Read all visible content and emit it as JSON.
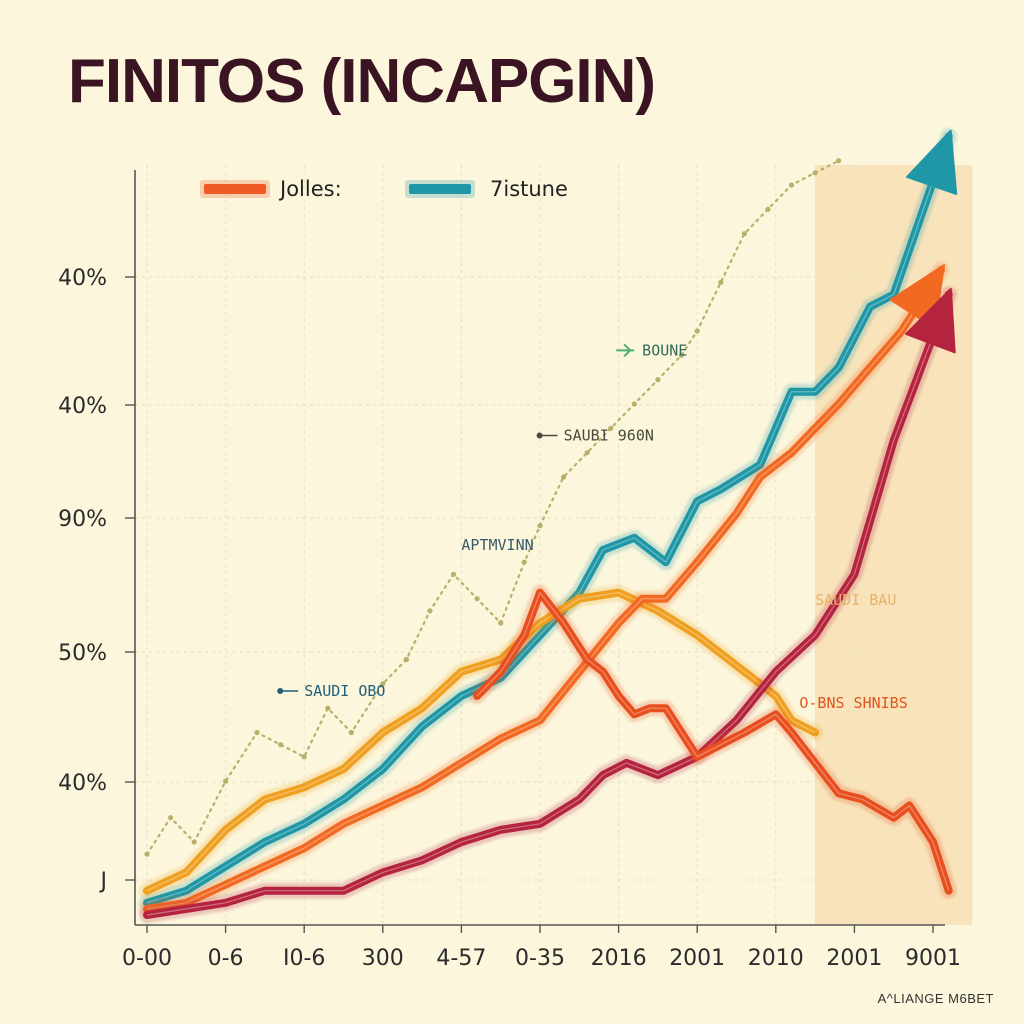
{
  "title": "FINITOS (INCAPGIN)",
  "footer": "A^LIANGE M6BET",
  "colors": {
    "background": "#fbf6dc",
    "highlight": "#f7dcb0",
    "grid": "#e8e2c8",
    "axis": "#555555"
  },
  "chart_data": {
    "type": "line",
    "title": "FINITOS (INCAPGIN)",
    "xlabel": "",
    "ylabel": "",
    "x_tick_labels": [
      "0-00",
      "0-6",
      "I0-6",
      "300",
      "4-57",
      "0-35",
      "2016",
      "2001",
      "2010",
      "2001",
      "9001"
    ],
    "y_tick_labels": [
      "J",
      "40%",
      "50%",
      "90%",
      "40%",
      "40%"
    ],
    "grid": true,
    "legend_position": "top-left",
    "legend": [
      {
        "label": "Jolles:",
        "color": "#f05a24"
      },
      {
        "label": "7istune",
        "color": "#1f97a6"
      }
    ],
    "highlight_band": {
      "from": 8.5,
      "to": 10.5
    },
    "ylim": [
      0,
      6
    ],
    "series": [
      {
        "color": "#1f97a6",
        "style": "line",
        "arrow": true,
        "x": [
          0,
          0.5,
          1,
          1.5,
          2,
          2.5,
          3,
          3.5,
          4,
          4.5,
          5,
          5.5,
          5.8,
          6.2,
          6.6,
          7,
          7.3,
          7.8,
          8.2,
          8.5,
          8.8,
          9.2,
          9.5,
          10.2
        ],
        "y": [
          0.1,
          0.2,
          0.4,
          0.6,
          0.75,
          0.95,
          1.2,
          1.55,
          1.8,
          1.95,
          2.3,
          2.65,
          3.0,
          3.1,
          2.9,
          3.4,
          3.5,
          3.7,
          4.3,
          4.3,
          4.5,
          5.0,
          5.1,
          6.4
        ]
      },
      {
        "color": "#f0a020",
        "style": "line",
        "arrow": false,
        "x": [
          0,
          0.5,
          1,
          1.5,
          2,
          2.5,
          3,
          3.5,
          4,
          4.5,
          5,
          5.5,
          6,
          6.5,
          7,
          7.5,
          8,
          8.2,
          8.5
        ],
        "y": [
          0.2,
          0.35,
          0.7,
          0.95,
          1.05,
          1.2,
          1.5,
          1.7,
          2.0,
          2.1,
          2.4,
          2.6,
          2.65,
          2.5,
          2.3,
          2.05,
          1.8,
          1.6,
          1.5
        ]
      },
      {
        "color": "#f26a22",
        "style": "line",
        "arrow": true,
        "x": [
          0,
          0.5,
          1,
          1.5,
          2,
          2.5,
          3,
          3.5,
          4,
          4.5,
          5,
          5.5,
          6,
          6.3,
          6.6,
          7,
          7.5,
          7.8,
          8.2,
          8.5,
          8.8,
          9.2,
          9.6,
          10.1
        ],
        "y": [
          0.05,
          0.1,
          0.25,
          0.4,
          0.55,
          0.75,
          0.9,
          1.05,
          1.25,
          1.45,
          1.6,
          2.0,
          2.4,
          2.6,
          2.6,
          2.9,
          3.3,
          3.6,
          3.8,
          4.0,
          4.2,
          4.5,
          4.8,
          5.3
        ]
      },
      {
        "color": "#b5243f",
        "style": "line",
        "arrow": true,
        "x": [
          0,
          0.5,
          1,
          1.5,
          2,
          2.5,
          3,
          3.5,
          4,
          4.5,
          5,
          5.5,
          5.8,
          6.1,
          6.5,
          7,
          7.5,
          8,
          8.5,
          9,
          9.5,
          10.2
        ],
        "y": [
          0.0,
          0.05,
          0.1,
          0.2,
          0.2,
          0.2,
          0.35,
          0.45,
          0.6,
          0.7,
          0.75,
          0.95,
          1.15,
          1.25,
          1.15,
          1.3,
          1.6,
          2.0,
          2.3,
          2.8,
          3.9,
          5.1
        ]
      },
      {
        "color": "#e84e1e",
        "style": "line",
        "arrow": false,
        "x": [
          4.2,
          4.5,
          4.8,
          5.0,
          5.3,
          5.6,
          5.8,
          6.0,
          6.2,
          6.4,
          6.6,
          7.0,
          7.3,
          7.6,
          8.0,
          8.2,
          8.5,
          8.8,
          9.1,
          9.5,
          9.7,
          10.0,
          10.2
        ],
        "y": [
          1.8,
          2.0,
          2.3,
          2.65,
          2.4,
          2.1,
          2.0,
          1.8,
          1.65,
          1.7,
          1.7,
          1.3,
          1.4,
          1.5,
          1.65,
          1.5,
          1.25,
          1.0,
          0.95,
          0.8,
          0.9,
          0.6,
          0.2
        ]
      },
      {
        "color": "#b8b06a",
        "style": "dotted",
        "arrow": false,
        "x": [
          0,
          0.3,
          0.6,
          1.0,
          1.4,
          1.7,
          2.0,
          2.3,
          2.6,
          3.0,
          3.3,
          3.6,
          3.9,
          4.2,
          4.5,
          4.8,
          5.0,
          5.3,
          5.6,
          5.9,
          6.2,
          6.5,
          6.8,
          7.0,
          7.3,
          7.6,
          7.9,
          8.2,
          8.5,
          8.8
        ],
        "y": [
          0.5,
          0.8,
          0.6,
          1.1,
          1.5,
          1.4,
          1.3,
          1.7,
          1.5,
          1.9,
          2.1,
          2.5,
          2.8,
          2.6,
          2.4,
          2.9,
          3.2,
          3.6,
          3.8,
          4.0,
          4.2,
          4.4,
          4.6,
          4.8,
          5.2,
          5.6,
          5.8,
          6.0,
          6.1,
          6.2
        ]
      }
    ],
    "annotations": [
      {
        "text": "BOUNE",
        "x": 6.3,
        "y": 4.6,
        "color": "#356a5a",
        "marker": "leaf"
      },
      {
        "text": "SAUBI 960N",
        "x": 5.3,
        "y": 3.9,
        "color": "#4a4a3a",
        "marker": "dot"
      },
      {
        "text": "APTMVINN",
        "x": 4.0,
        "y": 3.0,
        "color": "#3a5a6a",
        "marker": "none"
      },
      {
        "text": "SAUDI OBO",
        "x": 2.0,
        "y": 1.8,
        "color": "#1f5f7a",
        "marker": "dot"
      },
      {
        "text": "SAUDI BAU",
        "x": 8.5,
        "y": 2.55,
        "color": "#e8b26a",
        "marker": "none"
      },
      {
        "text": "O-BNS SHNIBS",
        "x": 8.3,
        "y": 1.7,
        "color": "#e0561e",
        "marker": "none"
      }
    ]
  }
}
